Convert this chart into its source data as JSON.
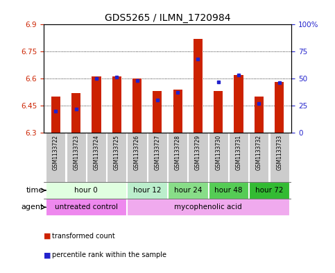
{
  "title": "GDS5265 / ILMN_1720984",
  "samples": [
    "GSM1133722",
    "GSM1133723",
    "GSM1133724",
    "GSM1133725",
    "GSM1133726",
    "GSM1133727",
    "GSM1133728",
    "GSM1133729",
    "GSM1133730",
    "GSM1133731",
    "GSM1133732",
    "GSM1133733"
  ],
  "transformed_count": [
    6.5,
    6.52,
    6.61,
    6.61,
    6.6,
    6.53,
    6.54,
    6.82,
    6.53,
    6.62,
    6.5,
    6.58
  ],
  "percentile_rank": [
    20,
    22,
    50,
    51,
    48,
    30,
    37,
    68,
    47,
    53,
    27,
    46
  ],
  "ymin": 6.3,
  "ymax": 6.9,
  "yticks": [
    6.3,
    6.45,
    6.6,
    6.75,
    6.9
  ],
  "ytick_labels": [
    "6.3",
    "6.45",
    "6.6",
    "6.75",
    "6.9"
  ],
  "right_yticks": [
    0,
    25,
    50,
    75,
    100
  ],
  "right_ytick_labels": [
    "0",
    "25",
    "50",
    "75",
    "100%"
  ],
  "dotted_lines": [
    6.45,
    6.6,
    6.75
  ],
  "bar_color": "#cc2200",
  "dot_color": "#2222cc",
  "time_groups": [
    {
      "label": "hour 0",
      "start": 0,
      "end": 3,
      "color": "#e0ffe0"
    },
    {
      "label": "hour 12",
      "start": 4,
      "end": 5,
      "color": "#bbeecc"
    },
    {
      "label": "hour 24",
      "start": 6,
      "end": 7,
      "color": "#88dd88"
    },
    {
      "label": "hour 48",
      "start": 8,
      "end": 9,
      "color": "#55cc55"
    },
    {
      "label": "hour 72",
      "start": 10,
      "end": 11,
      "color": "#33bb33"
    }
  ],
  "agent_groups": [
    {
      "label": "untreated control",
      "start": 0,
      "end": 3,
      "color": "#ee88ee"
    },
    {
      "label": "mycophenolic acid",
      "start": 4,
      "end": 11,
      "color": "#f0aaee"
    }
  ],
  "legend_red_label": "transformed count",
  "legend_blue_label": "percentile rank within the sample",
  "sample_bg": "#cccccc",
  "bg_color": "#ffffff",
  "bar_width": 0.45,
  "title_fontsize": 10,
  "label_fontsize": 6,
  "tick_fontsize": 7.5,
  "sample_fontsize": 5.5,
  "group_fontsize": 7.5,
  "legend_fontsize": 7
}
